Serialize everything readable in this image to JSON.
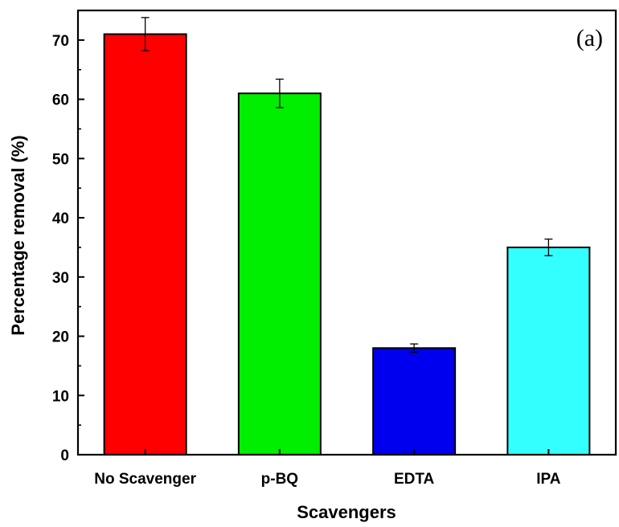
{
  "chart_data": {
    "type": "bar",
    "categories": [
      "No Scavenger",
      "p-BQ",
      "EDTA",
      "IPA"
    ],
    "values": [
      71,
      61,
      18,
      35
    ],
    "errors": [
      2.8,
      2.4,
      0.7,
      1.4
    ],
    "colors": [
      "#ff0000",
      "#00ee00",
      "#0000ee",
      "#33ffff"
    ],
    "xlabel": "Scavengers",
    "ylabel": "Percentage removal (%)",
    "panel_label": "(a)",
    "ylim": [
      0,
      75
    ],
    "yticks": [
      0,
      10,
      20,
      30,
      40,
      50,
      60,
      70
    ],
    "grid": false
  }
}
